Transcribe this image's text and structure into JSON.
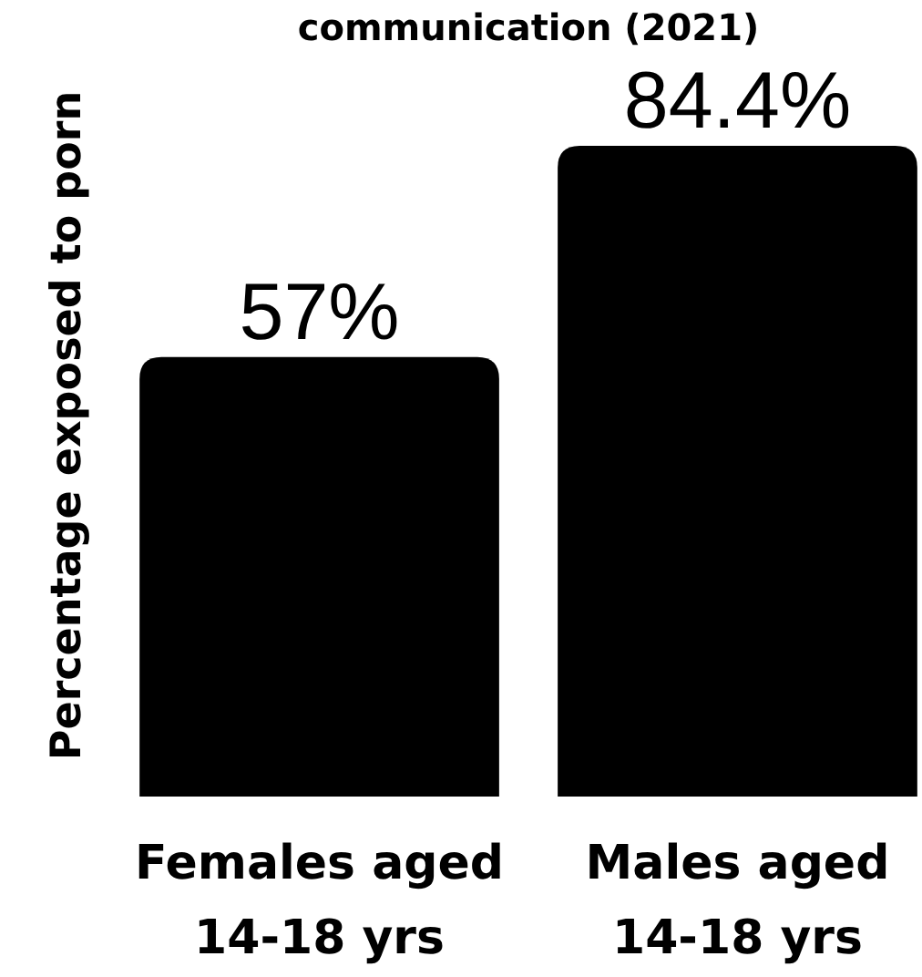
{
  "chart_data": {
    "type": "bar",
    "title": "communication (2021)",
    "ylabel": "Percentage exposed to porn",
    "categories": [
      "Females aged\n14-18 yrs",
      "Males aged\n14-18 yrs"
    ],
    "values": [
      57,
      84.4
    ],
    "value_labels": [
      "57%",
      "84.4%"
    ],
    "color": "#000000"
  }
}
